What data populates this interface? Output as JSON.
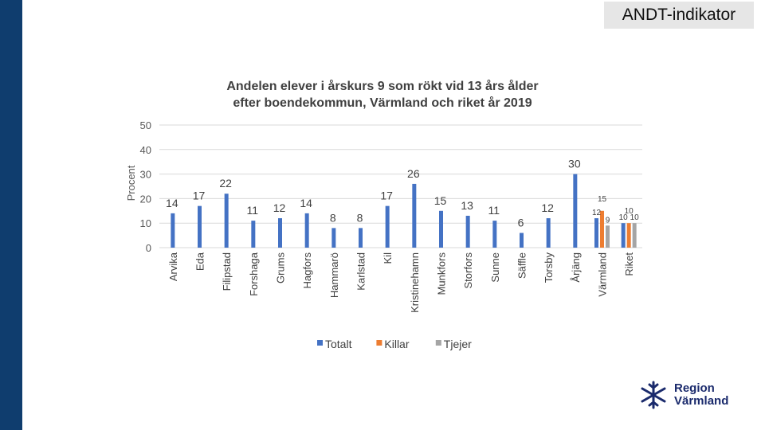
{
  "header": {
    "tag": "ANDT-indikator"
  },
  "chart_data": {
    "type": "bar",
    "title_line1": "Andelen elever i årskurs 9 som rökt vid 13 års ålder",
    "title_line2": "efter boendekommun, Värmland och riket år 2019",
    "xlabel": "",
    "ylabel": "Procent",
    "ylim": [
      0,
      50
    ],
    "yticks": [
      0,
      10,
      20,
      30,
      40,
      50
    ],
    "grid": true,
    "legend_position": "bottom",
    "categories": [
      "Arvika",
      "Eda",
      "Filipstad",
      "Forshaga",
      "Grums",
      "Hagfors",
      "Hammarö",
      "Karlstad",
      "Kil",
      "Kristinehamn",
      "Munkfors",
      "Storfors",
      "Sunne",
      "Säffle",
      "Torsby",
      "Årjäng",
      "Värmland",
      "Riket"
    ],
    "series": [
      {
        "name": "Totalt",
        "color": "#4472c4",
        "values": [
          14,
          17,
          22,
          11,
          12,
          14,
          8,
          8,
          17,
          26,
          15,
          13,
          11,
          6,
          12,
          30,
          12,
          10
        ]
      },
      {
        "name": "Killar",
        "color": "#ed7d31",
        "values": [
          null,
          null,
          null,
          null,
          null,
          null,
          null,
          null,
          null,
          null,
          null,
          null,
          null,
          null,
          null,
          null,
          15,
          10
        ]
      },
      {
        "name": "Tjejer",
        "color": "#a5a5a5",
        "values": [
          null,
          null,
          null,
          null,
          null,
          null,
          null,
          null,
          null,
          null,
          null,
          null,
          null,
          null,
          null,
          null,
          9,
          10
        ]
      }
    ]
  },
  "logo": {
    "line1": "Region",
    "line2": "Värmland"
  }
}
